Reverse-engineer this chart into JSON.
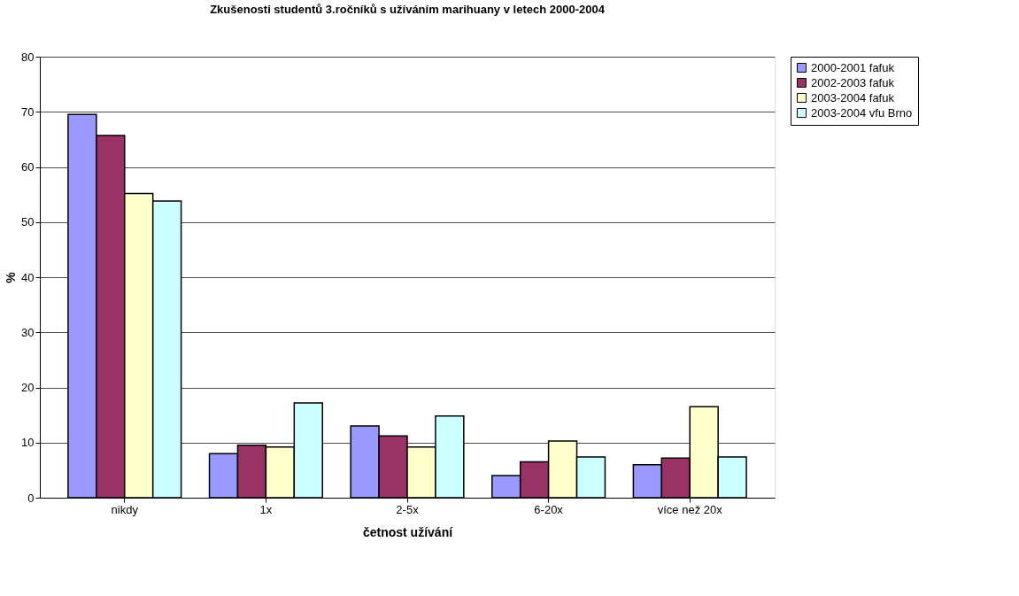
{
  "chart_data": {
    "type": "bar",
    "title": "Zkušenosti studentů 3.ročníků s užíváním marihuany v letech 2000-2004",
    "xlabel": "četnost užívání",
    "ylabel": "%",
    "categories": [
      "nikdy",
      "1x",
      "2-5x",
      "6-20x",
      "více než 20x"
    ],
    "series": [
      {
        "name": "2000-2001 fafuk",
        "color": "#9999ff",
        "values": [
          69.5,
          8.0,
          13.0,
          4.0,
          6.0
        ]
      },
      {
        "name": "2002-2003 fafuk",
        "color": "#993366",
        "values": [
          65.7,
          9.5,
          11.2,
          6.5,
          7.2
        ]
      },
      {
        "name": "2003-2004 fafuk",
        "color": "#ffffcc",
        "values": [
          55.2,
          9.2,
          9.2,
          10.3,
          16.5
        ]
      },
      {
        "name": "2003-2004 vfu Brno",
        "color": "#ccffff",
        "values": [
          53.8,
          17.2,
          14.8,
          7.4,
          7.4
        ]
      }
    ],
    "ylim": [
      0,
      80
    ],
    "yticks": [
      0,
      10,
      20,
      30,
      40,
      50,
      60,
      70,
      80
    ],
    "grid": "y",
    "legend": "right"
  }
}
